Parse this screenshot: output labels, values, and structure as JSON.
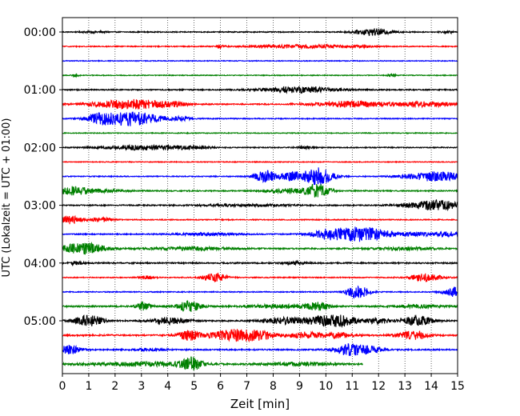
{
  "chart_data": {
    "type": "line",
    "title": "",
    "xlabel": "Zeit  [min]",
    "ylabel": "UTC (Lokalzeit = UTC + 01:00)",
    "xlim": [
      0,
      15
    ],
    "x_ticks": [
      "0",
      "1",
      "2",
      "3",
      "4",
      "5",
      "6",
      "7",
      "8",
      "9",
      "10",
      "11",
      "12",
      "13",
      "14",
      "15"
    ],
    "y_tick_labels": [
      "00:00",
      "01:00",
      "02:00",
      "03:00",
      "04:00",
      "05:00"
    ],
    "trace_interval_min": 15,
    "grid": "vertical dotted",
    "color_cycle": [
      "#000000",
      "#ff0000",
      "#0000ff",
      "#008000"
    ],
    "traces": [
      {
        "start": "00:00",
        "color": "#000000",
        "end_min": 15,
        "noise": 0.6,
        "events": [
          [
            1.2,
            0.3,
            1.0
          ],
          [
            11.8,
            0.5,
            4.0
          ],
          [
            14.6,
            0.2,
            1.0
          ]
        ]
      },
      {
        "start": "00:15",
        "color": "#ff0000",
        "end_min": 15,
        "noise": 0.6,
        "events": [
          [
            6.0,
            0.1,
            2.5
          ],
          [
            9.2,
            1.3,
            2.0
          ],
          [
            11.3,
            0.3,
            1.2
          ]
        ]
      },
      {
        "start": "00:30",
        "color": "#0000ff",
        "end_min": 15,
        "noise": 0.5,
        "events": []
      },
      {
        "start": "00:45",
        "color": "#008000",
        "end_min": 15,
        "noise": 0.5,
        "events": [
          [
            0.5,
            0.1,
            1.5
          ],
          [
            12.5,
            0.1,
            2.0
          ]
        ]
      },
      {
        "start": "01:00",
        "color": "#000000",
        "end_min": 15,
        "noise": 0.7,
        "events": [
          [
            9.0,
            1.0,
            3.5
          ]
        ]
      },
      {
        "start": "01:15",
        "color": "#ff0000",
        "end_min": 15,
        "noise": 0.7,
        "events": [
          [
            2.6,
            1.0,
            6.0
          ],
          [
            4.3,
            0.3,
            2.0
          ],
          [
            11.0,
            1.0,
            3.5
          ],
          [
            13.8,
            0.8,
            3.0
          ]
        ]
      },
      {
        "start": "01:30",
        "color": "#0000ff",
        "end_min": 15,
        "noise": 0.6,
        "events": [
          [
            1.4,
            0.3,
            5.0
          ],
          [
            2.6,
            0.8,
            9.0
          ],
          [
            4.5,
            0.3,
            2.0
          ]
        ]
      },
      {
        "start": "01:45",
        "color": "#008000",
        "end_min": 15,
        "noise": 0.5,
        "events": []
      },
      {
        "start": "02:00",
        "color": "#000000",
        "end_min": 15,
        "noise": 0.6,
        "events": [
          [
            3.2,
            1.1,
            3.0
          ],
          [
            5.0,
            0.5,
            1.2
          ],
          [
            9.2,
            0.2,
            1.5
          ]
        ]
      },
      {
        "start": "02:15",
        "color": "#ff0000",
        "end_min": 15,
        "noise": 0.5,
        "events": []
      },
      {
        "start": "02:30",
        "color": "#0000ff",
        "end_min": 15,
        "noise": 0.6,
        "events": [
          [
            7.7,
            0.3,
            7.0
          ],
          [
            8.7,
            0.3,
            5.0
          ],
          [
            9.7,
            0.4,
            11.0
          ],
          [
            14.2,
            0.8,
            6.0
          ]
        ]
      },
      {
        "start": "02:45",
        "color": "#008000",
        "end_min": 15,
        "noise": 0.7,
        "events": [
          [
            0.4,
            0.4,
            5.0
          ],
          [
            1.5,
            0.6,
            2.0
          ],
          [
            8.6,
            0.6,
            2.5
          ],
          [
            9.7,
            0.3,
            9.0
          ]
        ]
      },
      {
        "start": "03:00",
        "color": "#000000",
        "end_min": 15,
        "noise": 0.7,
        "events": [
          [
            7.0,
            1.2,
            1.2
          ],
          [
            14.2,
            0.8,
            6.0
          ]
        ]
      },
      {
        "start": "03:15",
        "color": "#ff0000",
        "end_min": 15,
        "noise": 0.6,
        "events": [
          [
            0.3,
            0.3,
            5.0
          ],
          [
            1.5,
            0.3,
            2.5
          ]
        ]
      },
      {
        "start": "03:30",
        "color": "#0000ff",
        "end_min": 15,
        "noise": 0.7,
        "events": [
          [
            5.5,
            0.8,
            1.5
          ],
          [
            10.0,
            0.4,
            4.0
          ],
          [
            11.3,
            0.8,
            9.0
          ],
          [
            13.5,
            0.4,
            1.8
          ],
          [
            14.6,
            0.4,
            3.0
          ]
        ]
      },
      {
        "start": "03:45",
        "color": "#008000",
        "end_min": 15,
        "noise": 0.8,
        "events": [
          [
            0.8,
            0.6,
            7.0
          ],
          [
            5.0,
            1.0,
            1.8
          ],
          [
            13.0,
            0.8,
            1.5
          ]
        ]
      },
      {
        "start": "04:00",
        "color": "#000000",
        "end_min": 15,
        "noise": 0.8,
        "events": [
          [
            0.5,
            0.2,
            1.8
          ],
          [
            8.8,
            0.3,
            1.5
          ]
        ]
      },
      {
        "start": "04:15",
        "color": "#ff0000",
        "end_min": 15,
        "noise": 0.6,
        "events": [
          [
            3.2,
            0.2,
            2.0
          ],
          [
            5.8,
            0.3,
            6.0
          ],
          [
            13.8,
            0.4,
            5.0
          ]
        ]
      },
      {
        "start": "04:30",
        "color": "#0000ff",
        "end_min": 15,
        "noise": 0.6,
        "events": [
          [
            11.2,
            0.3,
            8.0
          ],
          [
            14.9,
            0.3,
            6.0
          ]
        ]
      },
      {
        "start": "04:45",
        "color": "#008000",
        "end_min": 15,
        "noise": 0.9,
        "events": [
          [
            3.1,
            0.2,
            5.0
          ],
          [
            4.8,
            0.3,
            7.0
          ],
          [
            8.2,
            0.8,
            2.0
          ],
          [
            9.7,
            0.3,
            4.5
          ],
          [
            13.6,
            0.6,
            2.0
          ]
        ]
      },
      {
        "start": "05:00",
        "color": "#000000",
        "end_min": 15,
        "noise": 0.8,
        "events": [
          [
            1.0,
            0.4,
            7.0
          ],
          [
            4.0,
            0.5,
            4.0
          ],
          [
            8.5,
            0.6,
            4.0
          ],
          [
            10.3,
            0.6,
            8.0
          ],
          [
            12.0,
            0.3,
            3.5
          ],
          [
            13.5,
            0.4,
            6.0
          ]
        ]
      },
      {
        "start": "05:15",
        "color": "#ff0000",
        "end_min": 15,
        "noise": 0.9,
        "events": [
          [
            4.8,
            0.3,
            6.0
          ],
          [
            6.5,
            0.6,
            7.0
          ],
          [
            7.5,
            0.4,
            4.0
          ],
          [
            9.2,
            0.5,
            3.5
          ],
          [
            10.5,
            0.4,
            3.0
          ],
          [
            13.3,
            0.4,
            5.0
          ]
        ]
      },
      {
        "start": "05:30",
        "color": "#0000ff",
        "end_min": 15,
        "noise": 0.8,
        "events": [
          [
            0.3,
            0.3,
            5.5
          ],
          [
            3.3,
            0.4,
            1.5
          ],
          [
            10.9,
            0.4,
            7.0
          ],
          [
            11.7,
            0.3,
            3.5
          ]
        ]
      },
      {
        "start": "05:45",
        "color": "#008000",
        "end_min": 11.4,
        "noise": 1.0,
        "events": [
          [
            3.0,
            1.2,
            2.2
          ],
          [
            4.9,
            0.3,
            8.0
          ],
          [
            9.0,
            0.8,
            1.8
          ]
        ]
      }
    ]
  }
}
